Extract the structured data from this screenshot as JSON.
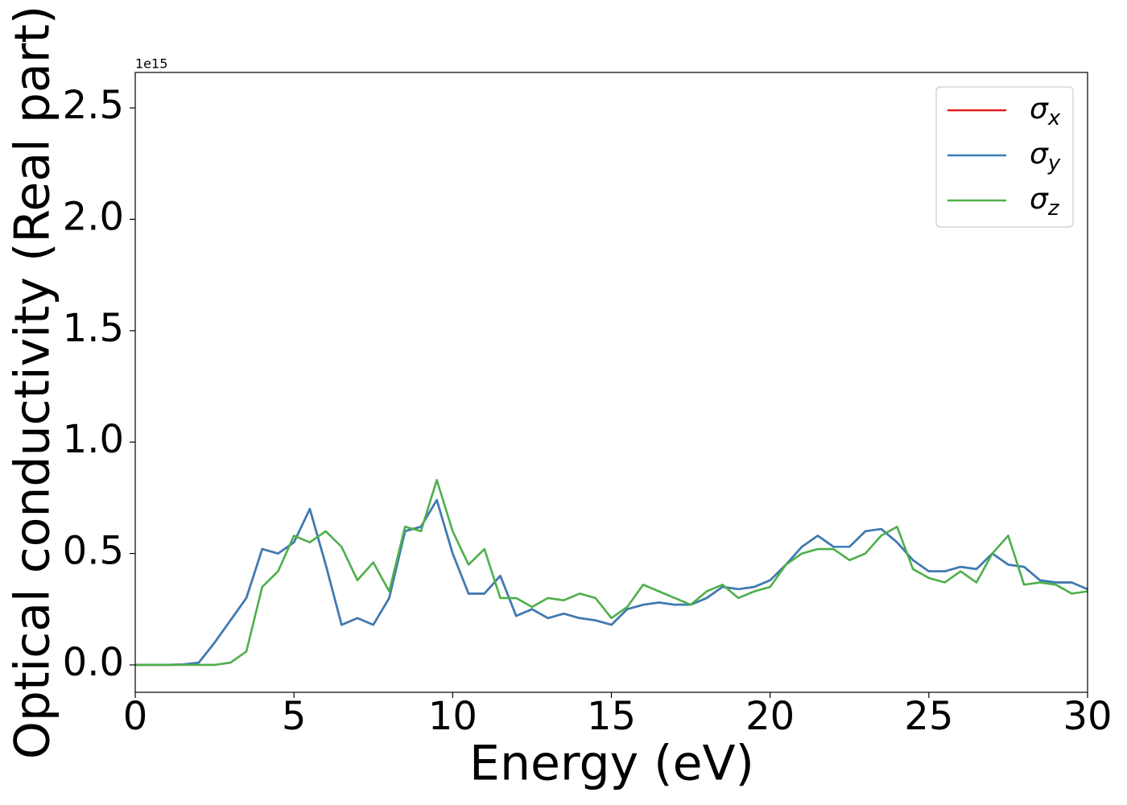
{
  "chart_data": {
    "type": "line",
    "xlabel": "Energy (eV)",
    "ylabel": "Optical conductivity (Real part)",
    "y_offset_label": "1e15",
    "xlim": [
      0,
      30
    ],
    "ylim": [
      -0.123,
      2.659
    ],
    "xticks": [
      0,
      5,
      10,
      15,
      20,
      25,
      30
    ],
    "yticks": [
      {
        "value": 0,
        "label": "0.0"
      },
      0.5,
      {
        "value": 1,
        "label": "1.0"
      },
      1.5,
      {
        "value": 2,
        "label": "2.0"
      },
      2.5
    ],
    "grid": false,
    "legend": "upper right",
    "x": [
      0,
      0.5,
      1,
      1.5,
      2,
      2.5,
      3,
      3.5,
      4,
      4.5,
      5,
      5.5,
      6,
      6.5,
      7,
      7.5,
      8,
      8.5,
      9,
      9.5,
      10,
      10.5,
      11,
      11.5,
      12,
      12.5,
      13,
      13.5,
      14,
      14.5,
      15,
      15.5,
      16,
      16.5,
      17,
      17.5,
      18,
      18.5,
      19,
      19.5,
      20,
      20.5,
      21,
      21.5,
      22,
      22.5,
      23,
      23.5,
      24,
      24.5,
      25,
      25.5,
      26,
      26.5,
      27,
      27.5,
      28,
      28.5,
      29,
      29.5,
      30
    ],
    "series": [
      {
        "name": "σx",
        "color": "#e41a1c",
        "values": [
          0,
          0,
          0,
          0.002,
          0.01,
          0.1,
          0.2,
          0.3,
          0.52,
          0.5,
          0.55,
          0.7,
          0.45,
          0.18,
          0.21,
          0.18,
          0.3,
          0.6,
          0.62,
          0.74,
          0.5,
          0.32,
          0.32,
          0.4,
          0.22,
          0.25,
          0.21,
          0.23,
          0.21,
          0.2,
          0.18,
          0.25,
          0.27,
          0.28,
          0.27,
          0.27,
          0.3,
          0.35,
          0.34,
          0.35,
          0.38,
          0.45,
          0.53,
          0.58,
          0.53,
          0.53,
          0.6,
          0.61,
          0.55,
          0.47,
          0.42,
          0.42,
          0.44,
          0.43,
          0.5,
          0.45,
          0.44,
          0.38,
          0.37,
          0.37,
          0.34
        ]
      },
      {
        "name": "σy",
        "color": "#377eb8",
        "values": [
          0,
          0,
          0,
          0.002,
          0.01,
          0.1,
          0.2,
          0.3,
          0.52,
          0.5,
          0.55,
          0.7,
          0.45,
          0.18,
          0.21,
          0.18,
          0.3,
          0.6,
          0.62,
          0.74,
          0.5,
          0.32,
          0.32,
          0.4,
          0.22,
          0.25,
          0.21,
          0.23,
          0.21,
          0.2,
          0.18,
          0.25,
          0.27,
          0.28,
          0.27,
          0.27,
          0.3,
          0.35,
          0.34,
          0.35,
          0.38,
          0.45,
          0.53,
          0.58,
          0.53,
          0.53,
          0.6,
          0.61,
          0.55,
          0.47,
          0.42,
          0.42,
          0.44,
          0.43,
          0.5,
          0.45,
          0.44,
          0.38,
          0.37,
          0.37,
          0.34
        ]
      },
      {
        "name": "σz",
        "color": "#4daf4a",
        "values": [
          0,
          0,
          0,
          0,
          0,
          0,
          0.01,
          0.06,
          0.35,
          0.42,
          0.58,
          0.55,
          0.6,
          0.53,
          0.38,
          0.46,
          0.33,
          0.62,
          0.6,
          0.83,
          0.6,
          0.45,
          0.52,
          0.3,
          0.3,
          0.26,
          0.3,
          0.29,
          0.32,
          0.3,
          0.21,
          0.26,
          0.36,
          0.33,
          0.3,
          0.27,
          0.33,
          0.36,
          0.3,
          0.33,
          0.35,
          0.45,
          0.5,
          0.52,
          0.52,
          0.47,
          0.5,
          0.58,
          0.62,
          0.43,
          0.39,
          0.37,
          0.42,
          0.37,
          0.5,
          0.58,
          0.36,
          0.37,
          0.36,
          0.32,
          0.33
        ]
      }
    ]
  }
}
